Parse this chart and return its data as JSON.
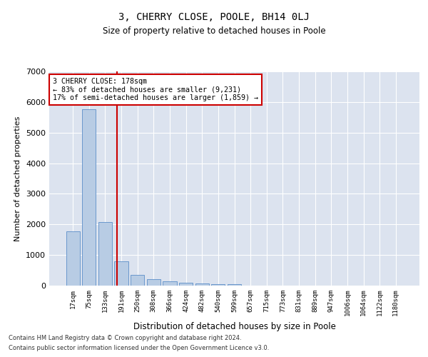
{
  "title": "3, CHERRY CLOSE, POOLE, BH14 0LJ",
  "subtitle": "Size of property relative to detached houses in Poole",
  "xlabel": "Distribution of detached houses by size in Poole",
  "ylabel": "Number of detached properties",
  "categories": [
    "17sqm",
    "75sqm",
    "133sqm",
    "191sqm",
    "250sqm",
    "308sqm",
    "366sqm",
    "424sqm",
    "482sqm",
    "540sqm",
    "599sqm",
    "657sqm",
    "715sqm",
    "773sqm",
    "831sqm",
    "889sqm",
    "947sqm",
    "1006sqm",
    "1064sqm",
    "1122sqm",
    "1180sqm"
  ],
  "values": [
    1780,
    5770,
    2075,
    800,
    340,
    220,
    130,
    105,
    70,
    55,
    55,
    0,
    0,
    0,
    0,
    0,
    0,
    0,
    0,
    0,
    0
  ],
  "bar_color": "#b8cce4",
  "bar_edge_color": "#5b8dc8",
  "vline_color": "#cc0000",
  "annotation_line1": "3 CHERRY CLOSE: 178sqm",
  "annotation_line2": "← 83% of detached houses are smaller (9,231)",
  "annotation_line3": "17% of semi-detached houses are larger (1,859) →",
  "annotation_box_color": "#ffffff",
  "annotation_box_edge": "#cc0000",
  "ylim": [
    0,
    7000
  ],
  "plot_background": "#dce3ef",
  "footer_line1": "Contains HM Land Registry data © Crown copyright and database right 2024.",
  "footer_line2": "Contains public sector information licensed under the Open Government Licence v3.0."
}
